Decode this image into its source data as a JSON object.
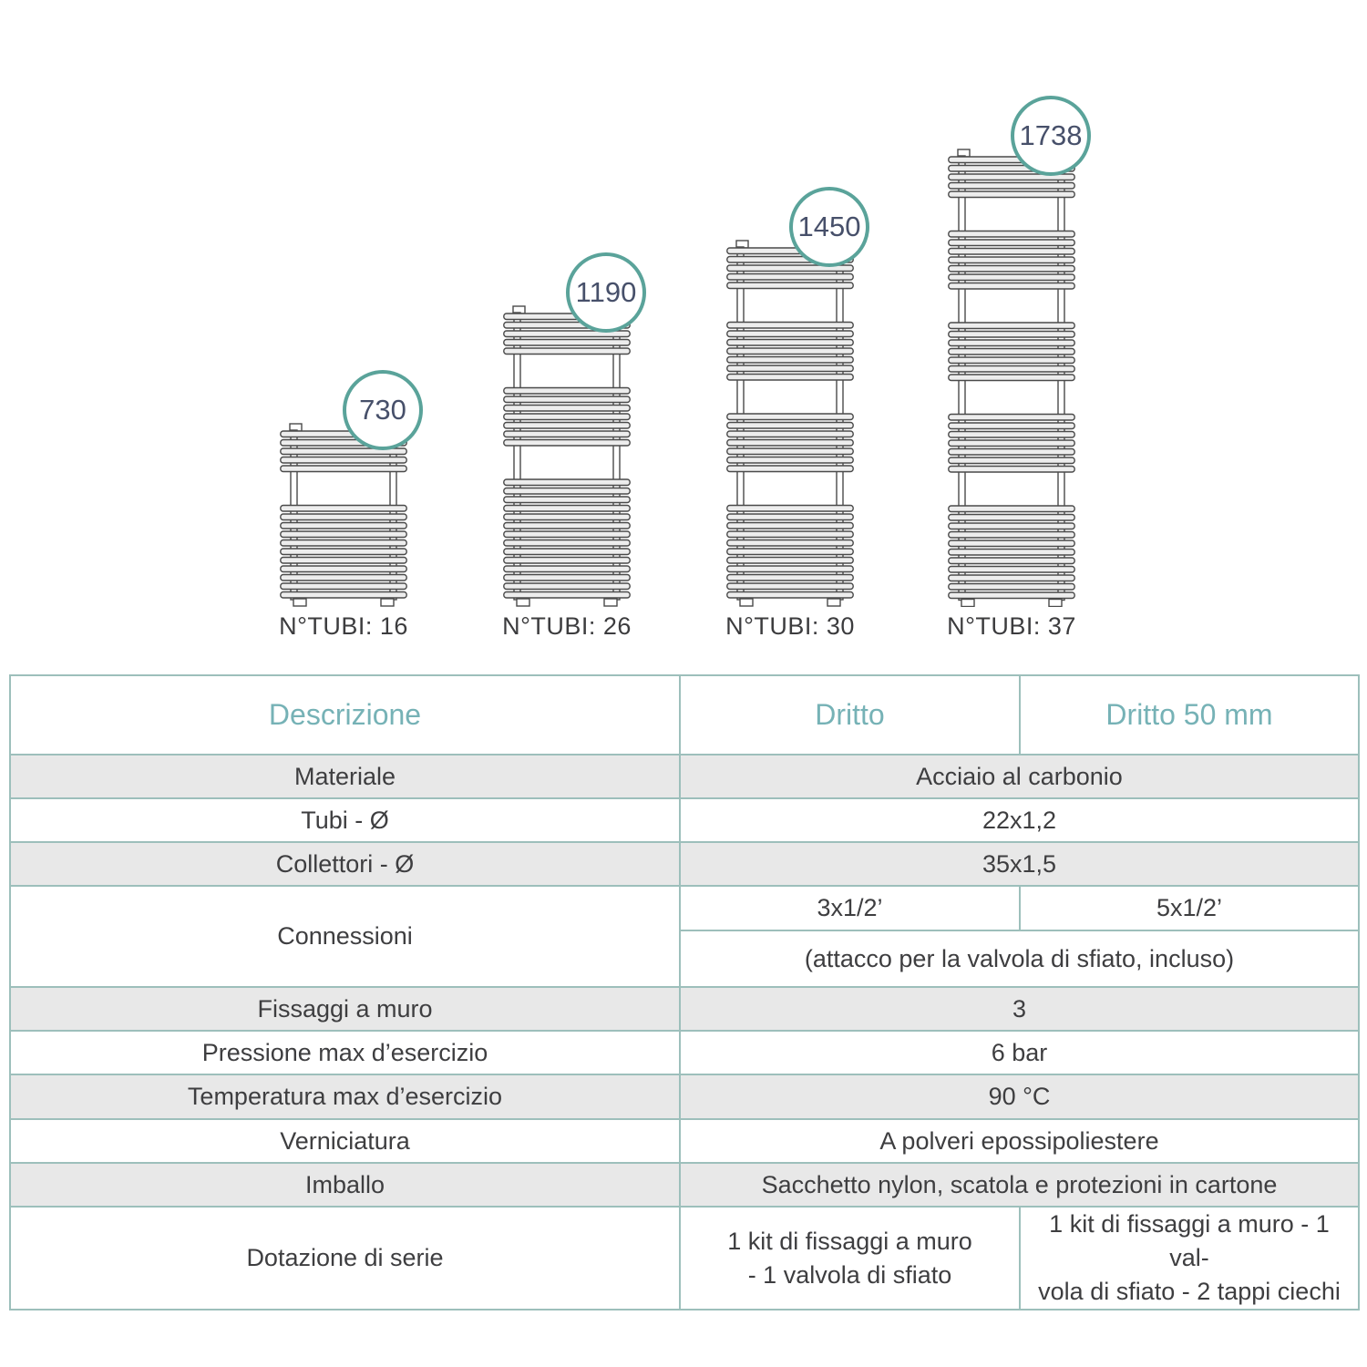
{
  "diagram": {
    "radiators": [
      {
        "height_mm": "730",
        "tubes_label": "N°TUBI: 16",
        "groups": [
          5,
          11
        ]
      },
      {
        "height_mm": "1190",
        "tubes_label": "N°TUBI: 26",
        "groups": [
          5,
          7,
          14
        ]
      },
      {
        "height_mm": "1450",
        "tubes_label": "N°TUBI: 30",
        "groups": [
          5,
          7,
          7,
          11
        ]
      },
      {
        "height_mm": "1738",
        "tubes_label": "N°TUBI: 37",
        "groups": [
          5,
          7,
          7,
          7,
          11
        ]
      }
    ],
    "badge_border_color": "#5aa39a",
    "badge_text_color": "#47506a",
    "line_color": "#4a4a4a"
  },
  "table": {
    "header": {
      "descrizione": "Descrizione",
      "dritto": "Dritto",
      "dritto50": "Dritto 50 mm"
    },
    "rows": {
      "materiale": {
        "label": "Materiale",
        "value": "Acciaio al carbonio"
      },
      "tubi": {
        "label": "Tubi - Ø",
        "value": "22x1,2"
      },
      "collettori": {
        "label": "Collettori - Ø",
        "value": "35x1,5"
      },
      "connessioni": {
        "label": "Connessioni",
        "dritto": "3x1/2’",
        "dritto50": "5x1/2’",
        "note": "(attacco per la valvola di sfiato, incluso)"
      },
      "fissaggi": {
        "label": "Fissaggi a muro",
        "value": "3"
      },
      "pressione": {
        "label": "Pressione max d’esercizio",
        "value": "6 bar"
      },
      "temperatura": {
        "label": "Temperatura max d’esercizio",
        "value": "90 °C"
      },
      "verniciatura": {
        "label": "Verniciatura",
        "value": "A polveri epossipoliestere"
      },
      "imballo": {
        "label": "Imballo",
        "value": "Sacchetto nylon, scatola e protezioni in cartone"
      },
      "dotazione": {
        "label": "Dotazione di serie",
        "dritto_line1": "1 kit di fissaggi a muro",
        "dritto_line2": "- 1 valvola di sfiato",
        "dritto50_line1": "1 kit di fissaggi a muro - 1 val-",
        "dritto50_line2": "vola di sfiato  - 2 tappi ciechi"
      }
    },
    "colors": {
      "border": "#9dbfbb",
      "header_text": "#76b2b6",
      "body_text": "#3e3e40",
      "row_alt_bg": "#e8e8e8"
    }
  }
}
